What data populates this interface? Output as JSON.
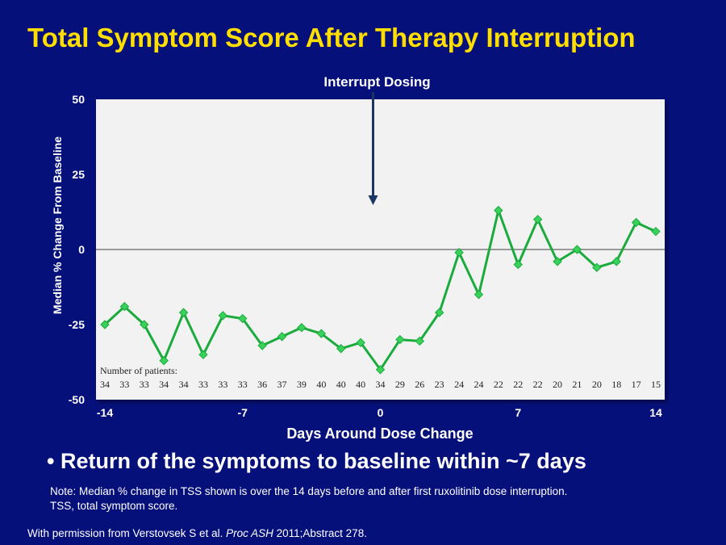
{
  "slide": {
    "title": "Total Symptom Score After Therapy Interruption",
    "bullet": "Return of the symptoms to baseline within ~7 days",
    "note_line1": "Note: Median % change in TSS shown is over the 14 days before and after first ruxolitinib dose interruption.",
    "note_line2": "TSS, total symptom score.",
    "source_prefix": "With permission from Verstovsek S et al. ",
    "source_journal": "Proc ASH",
    "source_suffix": " 2011;Abstract 278."
  },
  "colors": {
    "background": "#06107a",
    "title": "#ffde00",
    "plot_background": "#f2f2f2",
    "series_line": "#1aab3c",
    "marker": "#3ad15a",
    "arrow": "#1b3660",
    "zero_line": "#999999"
  },
  "chart_data": {
    "type": "line",
    "title": "",
    "xlabel": "Days Around Dose Change",
    "ylabel": "Median % Change From Baseline",
    "xlim": [
      -14,
      14
    ],
    "ylim": [
      -50,
      50
    ],
    "x_ticks": [
      -14,
      -7,
      0,
      7,
      14
    ],
    "x_tick_labels": [
      "-14",
      "-7",
      "0",
      "7",
      "14"
    ],
    "y_ticks": [
      50,
      25,
      0,
      -25,
      -50
    ],
    "y_tick_labels": [
      "50",
      "25",
      "0",
      "-25",
      "-50"
    ],
    "grid": false,
    "legend": "none",
    "annotation": {
      "label": "Interrupt Dosing",
      "arrow_x": 0
    },
    "series": [
      {
        "x": [
          -14,
          -13,
          -12,
          -11,
          -10,
          -9,
          -8,
          -7,
          -6,
          -5,
          -4,
          -3,
          -2,
          -1,
          0,
          1,
          2,
          3,
          4,
          5,
          6,
          7,
          8,
          9,
          10,
          11,
          12,
          13,
          14
        ],
        "values": [
          -25,
          -19,
          -25,
          -37,
          -21,
          -35,
          -22,
          -23,
          -32,
          -29,
          -26,
          -28,
          -33,
          -31,
          -40,
          -30,
          -30.5,
          -21,
          -1,
          -15,
          13,
          -5,
          10,
          -4,
          0,
          -6,
          -4,
          9,
          6
        ]
      }
    ],
    "patients_label": "Number of patients:",
    "patients": [
      34,
      33,
      33,
      34,
      34,
      33,
      33,
      33,
      36,
      37,
      39,
      40,
      40,
      40,
      34,
      29,
      26,
      23,
      24,
      24,
      22,
      22,
      22,
      20,
      21,
      20,
      18,
      17,
      15
    ]
  }
}
